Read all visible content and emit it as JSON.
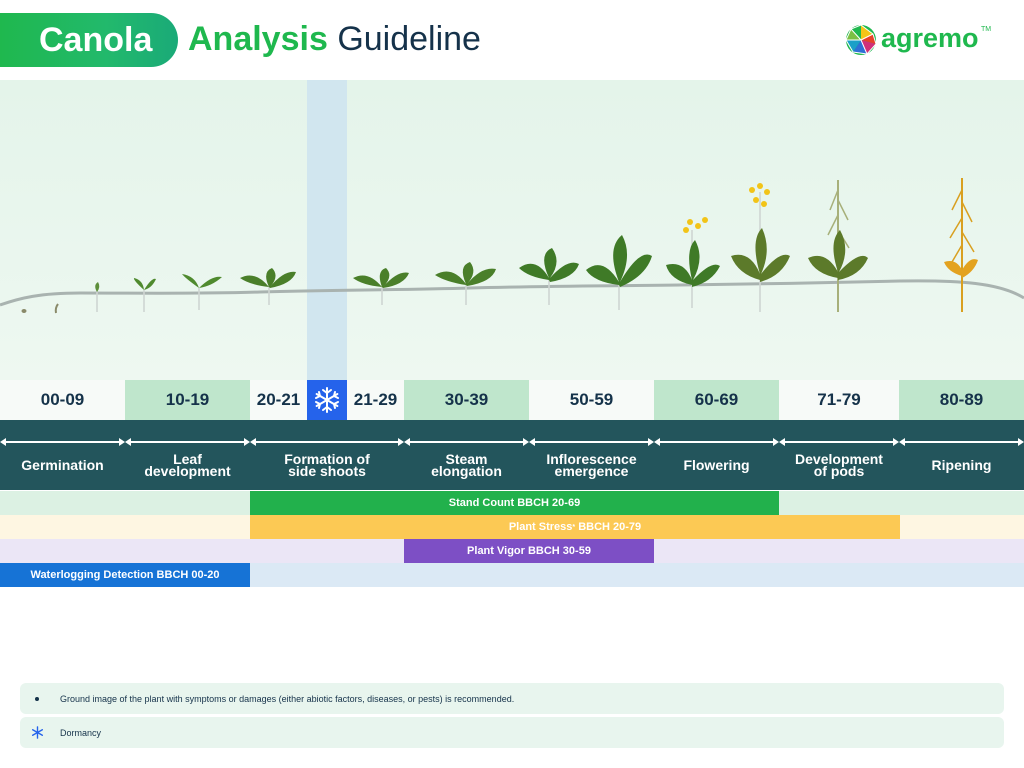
{
  "header": {
    "title_pill": "Canola",
    "title_accent": "Analysis",
    "title_rest": "Guideline",
    "logo_text": "agremo",
    "logo_tm": "TM"
  },
  "colors": {
    "brand_green": "#1fb84e",
    "dark_teal": "#23555c",
    "stand_count": "#22b14c",
    "plant_stress": "#fcc954",
    "plant_vigor": "#7d4fc5",
    "waterlogging": "#1673d6",
    "dormancy": "#2563eb"
  },
  "bbch_codes": [
    "00-09",
    "10-19",
    "20-21",
    "21-29",
    "30-39",
    "50-59",
    "60-69",
    "71-79",
    "80-89"
  ],
  "stages": [
    {
      "label": "Germination"
    },
    {
      "label": "Leaf development"
    },
    {
      "label": "Formation of side shoots"
    },
    {
      "label": "Steam elongation"
    },
    {
      "label": "Inflorescence emergence"
    },
    {
      "label": "Flowering"
    },
    {
      "label": "Development of pods"
    },
    {
      "label": "Ripening"
    }
  ],
  "analyses": [
    {
      "label": "Stand Count BBCH 20-69",
      "from": "20",
      "to": "69",
      "color": "#22b14c"
    },
    {
      "label": "Plant Stress",
      "mark": "*",
      "label_suffix": " BBCH 20-79",
      "from": "20",
      "to": "79",
      "color": "#fcc954"
    },
    {
      "label": "Plant Vigor BBCH 30-59",
      "from": "30",
      "to": "59",
      "color": "#7d4fc5"
    },
    {
      "label": "Waterlogging Detection BBCH 00-20",
      "from": "00",
      "to": "20",
      "color": "#1673d6"
    }
  ],
  "notes": [
    {
      "icon": "bullet-icon",
      "text": "Ground image of the plant with symptoms or damages (either abiotic factors, diseases, or pests) is recommended."
    },
    {
      "icon": "snowflake-icon",
      "text": "Dormancy"
    }
  ]
}
